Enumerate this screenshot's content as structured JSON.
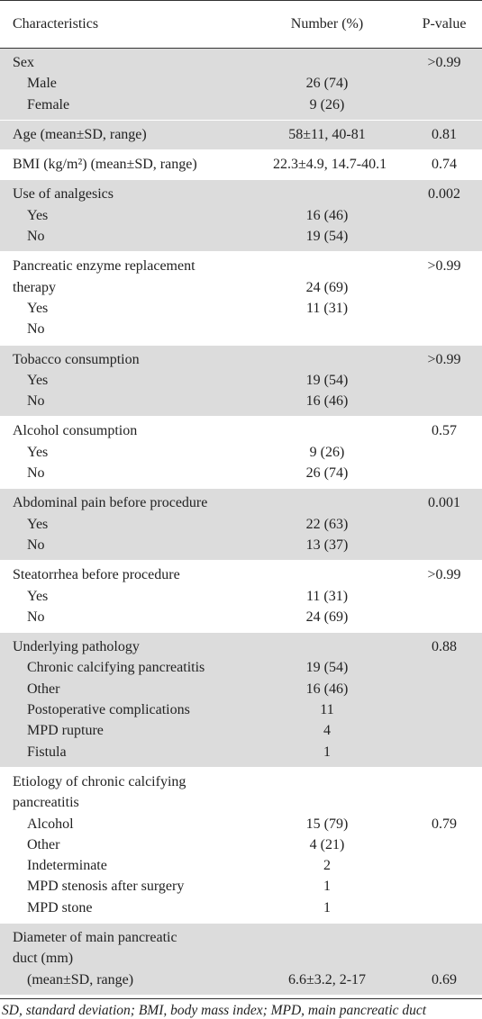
{
  "table": {
    "headers": {
      "characteristics": "Characteristics",
      "number": "Number (%)",
      "pvalue": "P-value"
    },
    "groups": [
      {
        "shaded": true,
        "lines": [
          {
            "label": "Sex",
            "indent": false,
            "number": "",
            "p": ">0.99"
          },
          {
            "label": "Male",
            "indent": true,
            "number": "26 (74)",
            "p": ""
          },
          {
            "label": "Female",
            "indent": true,
            "number": "9 (26)",
            "p": ""
          }
        ]
      },
      {
        "shaded": true,
        "lines": [
          {
            "label": "Age (mean±SD, range)",
            "indent": false,
            "number": "58±11, 40-81",
            "p": "0.81"
          }
        ]
      },
      {
        "shaded": false,
        "lines": [
          {
            "label": "BMI (kg/m²) (mean±SD, range)",
            "indent": false,
            "number": "22.3±4.9, 14.7-40.1",
            "p": "0.74"
          }
        ]
      },
      {
        "shaded": true,
        "lines": [
          {
            "label": "Use of analgesics",
            "indent": false,
            "number": "",
            "p": "0.002"
          },
          {
            "label": "Yes",
            "indent": true,
            "number": "16 (46)",
            "p": ""
          },
          {
            "label": "No",
            "indent": true,
            "number": "19 (54)",
            "p": ""
          }
        ]
      },
      {
        "shaded": false,
        "lines": [
          {
            "label": "Pancreatic enzyme replacement",
            "indent": false,
            "number": "",
            "p": ">0.99"
          },
          {
            "label": "therapy",
            "indent": false,
            "number": "24 (69)",
            "p": ""
          },
          {
            "label": "Yes",
            "indent": true,
            "number": "11 (31)",
            "p": ""
          },
          {
            "label": "No",
            "indent": true,
            "number": "",
            "p": ""
          }
        ]
      },
      {
        "shaded": true,
        "lines": [
          {
            "label": "Tobacco consumption",
            "indent": false,
            "number": "",
            "p": ">0.99"
          },
          {
            "label": "Yes",
            "indent": true,
            "number": "19 (54)",
            "p": ""
          },
          {
            "label": "No",
            "indent": true,
            "number": "16 (46)",
            "p": ""
          }
        ]
      },
      {
        "shaded": false,
        "lines": [
          {
            "label": "Alcohol consumption",
            "indent": false,
            "number": "",
            "p": "0.57"
          },
          {
            "label": "Yes",
            "indent": true,
            "number": "9 (26)",
            "p": ""
          },
          {
            "label": "No",
            "indent": true,
            "number": "26 (74)",
            "p": ""
          }
        ]
      },
      {
        "shaded": true,
        "lines": [
          {
            "label": "Abdominal pain before procedure",
            "indent": false,
            "number": "",
            "p": "0.001"
          },
          {
            "label": "Yes",
            "indent": true,
            "number": "22 (63)",
            "p": ""
          },
          {
            "label": "No",
            "indent": true,
            "number": "13 (37)",
            "p": ""
          }
        ]
      },
      {
        "shaded": false,
        "lines": [
          {
            "label": "Steatorrhea before procedure",
            "indent": false,
            "number": "",
            "p": ">0.99"
          },
          {
            "label": "Yes",
            "indent": true,
            "number": "11 (31)",
            "p": ""
          },
          {
            "label": "No",
            "indent": true,
            "number": "24 (69)",
            "p": ""
          }
        ]
      },
      {
        "shaded": true,
        "lines": [
          {
            "label": "Underlying pathology",
            "indent": false,
            "number": "",
            "p": "0.88"
          },
          {
            "label": "Chronic calcifying pancreatitis",
            "indent": true,
            "number": "19 (54)",
            "p": ""
          },
          {
            "label": "Other",
            "indent": true,
            "number": "16 (46)",
            "p": ""
          },
          {
            "label": "Postoperative complications",
            "indent": true,
            "number": "11",
            "p": ""
          },
          {
            "label": "MPD rupture",
            "indent": true,
            "number": "4",
            "p": ""
          },
          {
            "label": "Fistula",
            "indent": true,
            "number": "1",
            "p": ""
          }
        ]
      },
      {
        "shaded": false,
        "lines": [
          {
            "label": "Etiology of chronic calcifying",
            "indent": false,
            "number": "",
            "p": ""
          },
          {
            "label": "pancreatitis",
            "indent": false,
            "number": "",
            "p": ""
          },
          {
            "label": "Alcohol",
            "indent": true,
            "number": "15 (79)",
            "p": "0.79"
          },
          {
            "label": "Other",
            "indent": true,
            "number": "4 (21)",
            "p": ""
          },
          {
            "label": "Indeterminate",
            "indent": true,
            "number": "2",
            "p": ""
          },
          {
            "label": "MPD stenosis after surgery",
            "indent": true,
            "number": "1",
            "p": ""
          },
          {
            "label": "MPD stone",
            "indent": true,
            "number": "1",
            "p": ""
          }
        ]
      },
      {
        "shaded": true,
        "lines": [
          {
            "label": "Diameter of main pancreatic",
            "indent": false,
            "number": "",
            "p": ""
          },
          {
            "label": "duct (mm)",
            "indent": false,
            "number": "",
            "p": ""
          },
          {
            "label": "(mean±SD, range)",
            "indent": true,
            "number": "6.6±3.2, 2-17",
            "p": "0.69"
          }
        ]
      }
    ],
    "footnote": "SD, standard deviation; BMI, body mass index; MPD, main pancreatic duct"
  }
}
